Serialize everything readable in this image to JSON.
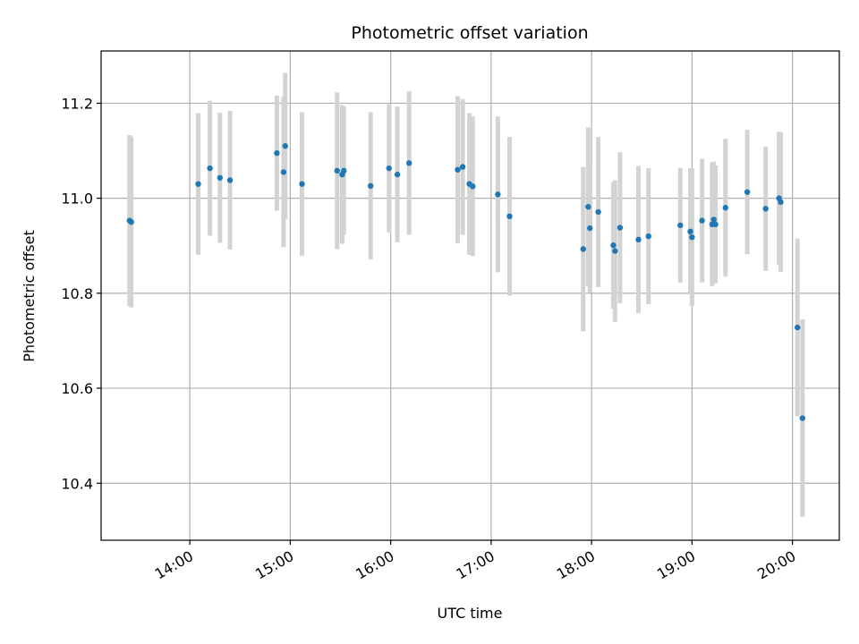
{
  "colors": {
    "point": "#1f77b4",
    "errorbar": "#d3d3d3",
    "grid": "#b0b0b0",
    "axis": "#000000",
    "background": "#ffffff"
  },
  "chart_data": {
    "type": "scatter",
    "title": "Photometric offset variation",
    "xlabel": "UTC time",
    "ylabel": "Photometric offset",
    "grid": true,
    "xlim": [
      "13:07",
      "20:28"
    ],
    "ylim": [
      10.28,
      11.31
    ],
    "x_ticks": [
      "14:00",
      "15:00",
      "16:00",
      "17:00",
      "18:00",
      "19:00",
      "20:00"
    ],
    "y_ticks": [
      "10.4",
      "10.6",
      "10.8",
      "11.0",
      "11.2"
    ],
    "y_tick_values": [
      10.4,
      10.6,
      10.8,
      11.0,
      11.2
    ],
    "series": [
      {
        "marker": "point",
        "error_bars": true,
        "x": [
          "13:24",
          "13:25",
          "14:05",
          "14:12",
          "14:18",
          "14:24",
          "14:52",
          "14:56",
          "14:57",
          "15:07",
          "15:28",
          "15:31",
          "15:32",
          "15:48",
          "15:59",
          "16:04",
          "16:11",
          "16:40",
          "16:43",
          "16:47",
          "16:49",
          "17:04",
          "17:11",
          "17:55",
          "17:58",
          "17:59",
          "18:04",
          "18:13",
          "18:14",
          "18:17",
          "18:28",
          "18:34",
          "18:53",
          "18:59",
          "19:00",
          "19:06",
          "19:12",
          "19:13",
          "19:14",
          "19:20",
          "19:33",
          "19:44",
          "19:52",
          "19:53",
          "20:03",
          "20:06"
        ],
        "y": [
          10.953,
          10.95,
          11.03,
          11.063,
          11.043,
          11.038,
          11.095,
          11.055,
          11.11,
          11.03,
          11.058,
          11.05,
          11.058,
          11.026,
          11.063,
          11.05,
          11.074,
          11.06,
          11.066,
          11.03,
          11.025,
          11.008,
          10.962,
          10.893,
          10.982,
          10.937,
          10.971,
          10.901,
          10.889,
          10.938,
          10.913,
          10.92,
          10.943,
          10.93,
          10.918,
          10.953,
          10.945,
          10.955,
          10.945,
          10.98,
          11.013,
          10.978,
          11.0,
          10.992,
          10.728,
          10.537
        ],
        "error": [
          0.18,
          0.18,
          0.149,
          0.142,
          0.137,
          0.146,
          0.121,
          0.158,
          0.154,
          0.151,
          0.165,
          0.146,
          0.135,
          0.155,
          0.135,
          0.143,
          0.151,
          0.155,
          0.143,
          0.149,
          0.147,
          0.164,
          0.167,
          0.173,
          0.167,
          0.136,
          0.158,
          0.133,
          0.149,
          0.159,
          0.155,
          0.143,
          0.121,
          0.133,
          0.145,
          0.13,
          0.13,
          0.122,
          0.124,
          0.145,
          0.131,
          0.131,
          0.14,
          0.147,
          0.187,
          0.208
        ]
      }
    ]
  }
}
